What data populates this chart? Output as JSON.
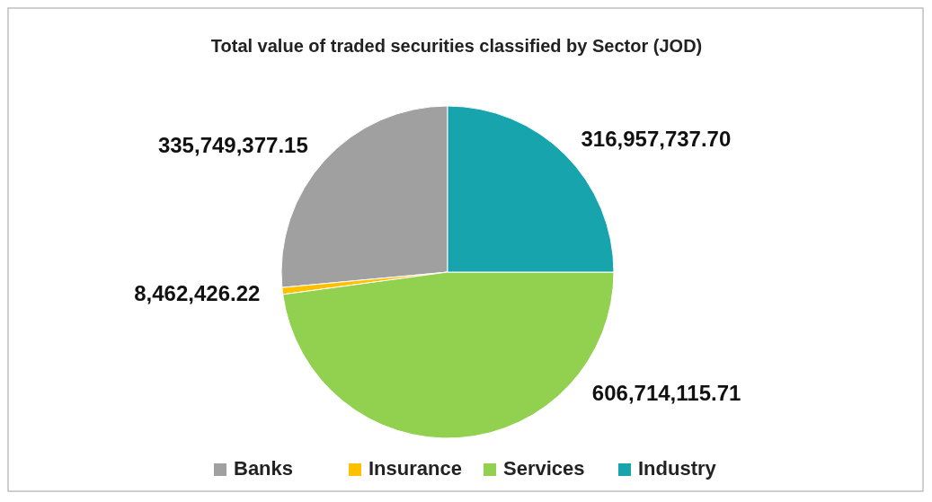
{
  "chart_data": {
    "type": "pie",
    "title": "Total value of traded securities classified by Sector (JOD)",
    "categories": [
      "Banks",
      "Insurance",
      "Services",
      "Industry"
    ],
    "values": [
      335749377.15,
      8462426.22,
      606714115.71,
      316957737.7
    ],
    "colors": [
      "#a0a0a0",
      "#ffc000",
      "#92d050",
      "#17a4ac"
    ],
    "value_labels": [
      "335,749,377.15",
      "8,462,426.22",
      "606,714,115.71",
      "316,957,737.70"
    ],
    "legend": "bottom"
  }
}
